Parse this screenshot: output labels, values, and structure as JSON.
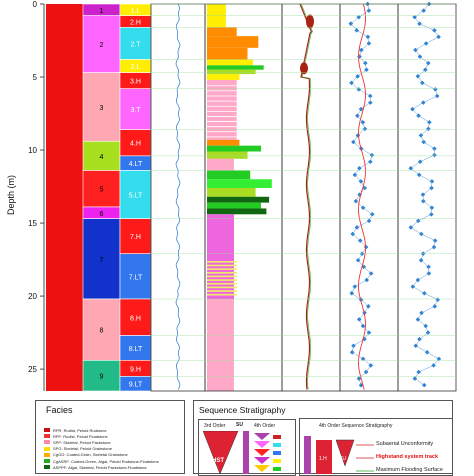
{
  "depth_axis": {
    "title": "Depth (m)",
    "ticks": [
      "0",
      "5",
      "10",
      "15",
      "20",
      "25"
    ],
    "min": 0,
    "max": 26.5
  },
  "zones": [
    {
      "label": "1",
      "top": 0.0,
      "bottom": 0.8,
      "color": "#cc22cc"
    },
    {
      "label": "2",
      "top": 0.8,
      "bottom": 4.7,
      "color": "#ff66ff"
    },
    {
      "label": "3",
      "top": 4.7,
      "bottom": 9.4,
      "color": "#ffa8b4"
    },
    {
      "label": "4",
      "top": 9.4,
      "bottom": 11.4,
      "color": "#a8e020"
    },
    {
      "label": "5",
      "top": 11.4,
      "bottom": 13.9,
      "color": "#ff2020"
    },
    {
      "label": "6",
      "top": 13.9,
      "bottom": 14.7,
      "color": "#ee22ee"
    },
    {
      "label": "7",
      "top": 14.7,
      "bottom": 20.2,
      "color": "#1133cc"
    },
    {
      "label": "8",
      "top": 20.2,
      "bottom": 24.4,
      "color": "#ffa8b4"
    },
    {
      "label": "9",
      "top": 24.4,
      "bottom": 26.5,
      "color": "#22bb88"
    }
  ],
  "cycles": [
    {
      "label": "1.L",
      "top": 0.0,
      "bottom": 0.8,
      "color": "#ffee00"
    },
    {
      "label": "2.H",
      "top": 0.8,
      "bottom": 1.6,
      "color": "#ff1a1a"
    },
    {
      "label": "2.T",
      "top": 1.6,
      "bottom": 3.8,
      "color": "#33ddee"
    },
    {
      "label": "2.L",
      "top": 3.8,
      "bottom": 4.7,
      "color": "#ffee00"
    },
    {
      "label": "3.H",
      "top": 4.7,
      "bottom": 5.8,
      "color": "#ff1a1a"
    },
    {
      "label": "3.T",
      "top": 5.8,
      "bottom": 8.6,
      "color": "#ff66ff"
    },
    {
      "label": "4.H",
      "top": 8.6,
      "bottom": 10.4,
      "color": "#ff1a1a"
    },
    {
      "label": "4.LT",
      "top": 10.4,
      "bottom": 11.4,
      "color": "#3377ee"
    },
    {
      "label": "5.LT",
      "top": 11.4,
      "bottom": 14.7,
      "color": "#33ddee"
    },
    {
      "label": "7.H",
      "top": 14.7,
      "bottom": 17.1,
      "color": "#ff1a1a"
    },
    {
      "label": "7.LT",
      "top": 17.1,
      "bottom": 20.2,
      "color": "#3377ee"
    },
    {
      "label": "8.H",
      "top": 20.2,
      "bottom": 22.7,
      "color": "#ff1a1a"
    },
    {
      "label": "8.LT",
      "top": 22.7,
      "bottom": 24.4,
      "color": "#3377ee"
    },
    {
      "label": "9.H",
      "top": 24.4,
      "bottom": 25.5,
      "color": "#ff1a1a"
    },
    {
      "label": "9.LT",
      "top": 25.5,
      "bottom": 26.5,
      "color": "#3377ee"
    }
  ],
  "lithology_bars": [
    {
      "top": 0.0,
      "bottom": 1.6,
      "size": 0.35,
      "color": "#ffee00"
    },
    {
      "top": 1.6,
      "bottom": 2.2,
      "size": 0.55,
      "color": "#ff8c00"
    },
    {
      "top": 2.2,
      "bottom": 3.0,
      "size": 0.95,
      "color": "#ff8c00"
    },
    {
      "top": 3.0,
      "bottom": 3.8,
      "size": 0.75,
      "color": "#ff8c00"
    },
    {
      "top": 3.8,
      "bottom": 4.2,
      "size": 0.85,
      "color": "#ffee00"
    },
    {
      "top": 4.2,
      "bottom": 4.5,
      "size": 1.05,
      "color": "#22cc22"
    },
    {
      "top": 4.5,
      "bottom": 4.8,
      "size": 0.9,
      "color": "#aadd22"
    },
    {
      "top": 4.8,
      "bottom": 5.2,
      "size": 0.6,
      "color": "#ffee00"
    },
    {
      "top": 5.2,
      "bottom": 9.3,
      "size": 0.55,
      "color": "#ffa8c8"
    },
    {
      "top": 9.3,
      "bottom": 9.7,
      "size": 0.6,
      "color": "#ff8c00"
    },
    {
      "top": 9.7,
      "bottom": 10.1,
      "size": 1.0,
      "color": "#22cc22"
    },
    {
      "top": 10.1,
      "bottom": 10.6,
      "size": 0.75,
      "color": "#aadd22"
    },
    {
      "top": 10.6,
      "bottom": 11.4,
      "size": 0.5,
      "color": "#ffa8c8"
    },
    {
      "top": 11.4,
      "bottom": 12.0,
      "size": 0.8,
      "color": "#22cc22"
    },
    {
      "top": 12.0,
      "bottom": 12.6,
      "size": 1.2,
      "color": "#33ee33"
    },
    {
      "top": 12.6,
      "bottom": 13.2,
      "size": 0.9,
      "color": "#aadd22"
    },
    {
      "top": 13.2,
      "bottom": 13.6,
      "size": 1.15,
      "color": "#116611"
    },
    {
      "top": 13.6,
      "bottom": 14.0,
      "size": 1.0,
      "color": "#22cc22"
    },
    {
      "top": 14.0,
      "bottom": 14.4,
      "size": 1.1,
      "color": "#116611"
    },
    {
      "top": 14.4,
      "bottom": 20.2,
      "size": 0.5,
      "color": "#ee66dd"
    },
    {
      "top": 20.2,
      "bottom": 26.5,
      "size": 0.5,
      "color": "#ffa8c8"
    }
  ],
  "legend": {
    "facies_title": "Facies",
    "facies_items": [
      {
        "text": "RPR: Rudist, Peloid Rudstone",
        "color": "#cc1111"
      },
      {
        "text": "RPF: Rudist, Peloid Floatstone",
        "color": "#ee3333"
      },
      {
        "text": "SPP: Skeletal, Peloid Packstone",
        "color": "#ff88aa"
      },
      {
        "text": "SPG: Skeletal, Peloid Grainstone",
        "color": "#ffdd00"
      },
      {
        "text": "CgGG: Coated-Grain, Skeletal Grainstone",
        "color": "#ffaa00"
      },
      {
        "text": "CgASRF: Coated-Green, Algal, Peloid Rudstone-Floatstone",
        "color": "#22aa22"
      },
      {
        "text": "ASPPF: Algal, Skeletal, Peloid Packstone-Floatstone",
        "color": "#116611"
      }
    ],
    "seq_title": "Sequence Stratigraphy",
    "col_3rd": "3rd Order",
    "col_su": "SU",
    "col_4th": "4th Order",
    "hst": "HST",
    "right_title": "4th Order Sequence Stratigraphy",
    "key_1h": "1.H",
    "key_su": "SU",
    "subaerial": "Subaerial Unconformity",
    "highstand": "Highstand system track",
    "mfs": "Maximum Flooding Surface"
  }
}
